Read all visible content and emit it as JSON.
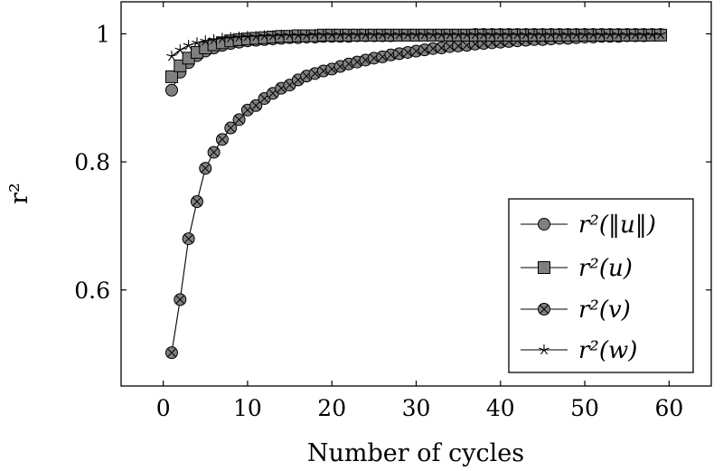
{
  "chart_data": {
    "type": "line",
    "title": "",
    "xlabel": "Number of cycles",
    "ylabel": "r²",
    "xlim": [
      -5,
      65
    ],
    "ylim": [
      0.45,
      1.05
    ],
    "xticks": [
      0,
      10,
      20,
      30,
      40,
      50,
      60
    ],
    "xtick_labels": [
      "0",
      "10",
      "20",
      "30",
      "40",
      "50",
      "60"
    ],
    "yticks": [
      0.6,
      0.8,
      1
    ],
    "ytick_labels": [
      "0.6",
      "0.8",
      "1"
    ],
    "grid": false,
    "legend_position": "bottom-right",
    "series": [
      {
        "name": "r²(‖u‖)",
        "marker": "circle",
        "color": "#808080",
        "x": [
          1,
          2,
          3,
          4,
          5,
          6,
          7,
          8,
          9,
          10,
          11,
          12,
          13,
          14,
          15,
          16,
          17,
          18,
          19,
          20,
          21,
          22,
          23,
          24,
          25,
          26,
          27,
          28,
          29,
          30,
          31,
          32,
          33,
          34,
          35,
          36,
          37,
          38,
          39,
          40,
          41,
          42,
          43,
          44,
          45,
          46,
          47,
          48,
          49,
          50,
          51,
          52,
          53,
          54,
          55,
          56,
          57,
          58,
          59
        ],
        "y": [
          0.912,
          0.94,
          0.955,
          0.966,
          0.973,
          0.978,
          0.982,
          0.985,
          0.987,
          0.989,
          0.99,
          0.991,
          0.992,
          0.993,
          0.994,
          0.994,
          0.995,
          0.995,
          0.996,
          0.996,
          0.996,
          0.996,
          0.997,
          0.997,
          0.997,
          0.997,
          0.997,
          0.998,
          0.998,
          0.998,
          0.998,
          0.998,
          0.998,
          0.998,
          0.998,
          0.998,
          0.999,
          0.999,
          0.999,
          0.999,
          0.999,
          0.999,
          0.999,
          0.999,
          0.999,
          0.999,
          0.999,
          0.999,
          0.999,
          0.999,
          0.999,
          0.999,
          0.999,
          0.999,
          0.999,
          0.999,
          0.999,
          0.999,
          0.999
        ]
      },
      {
        "name": "r²(u)",
        "marker": "square",
        "color": "#808080",
        "x": [
          1,
          2,
          3,
          4,
          5,
          6,
          7,
          8,
          9,
          10,
          11,
          12,
          13,
          14,
          15,
          16,
          17,
          18,
          19,
          20,
          21,
          22,
          23,
          24,
          25,
          26,
          27,
          28,
          29,
          30,
          31,
          32,
          33,
          34,
          35,
          36,
          37,
          38,
          39,
          40,
          41,
          42,
          43,
          44,
          45,
          46,
          47,
          48,
          49,
          50,
          51,
          52,
          53,
          54,
          55,
          56,
          57,
          58,
          59
        ],
        "y": [
          0.933,
          0.95,
          0.962,
          0.971,
          0.978,
          0.983,
          0.986,
          0.989,
          0.991,
          0.992,
          0.993,
          0.994,
          0.995,
          0.996,
          0.996,
          0.997,
          0.997,
          0.997,
          0.998,
          0.998,
          0.998,
          0.998,
          0.998,
          0.998,
          0.998,
          0.998,
          0.998,
          0.998,
          0.998,
          0.998,
          0.998,
          0.998,
          0.998,
          0.998,
          0.998,
          0.998,
          0.998,
          0.998,
          0.998,
          0.998,
          0.998,
          0.998,
          0.998,
          0.998,
          0.998,
          0.998,
          0.998,
          0.998,
          0.998,
          0.998,
          0.998,
          0.998,
          0.998,
          0.998,
          0.998,
          0.998,
          0.998,
          0.998,
          0.998
        ]
      },
      {
        "name": "r²(v)",
        "marker": "otimes",
        "color": "#808080",
        "x": [
          1,
          2,
          3,
          4,
          5,
          6,
          7,
          8,
          9,
          10,
          11,
          12,
          13,
          14,
          15,
          16,
          17,
          18,
          19,
          20,
          21,
          22,
          23,
          24,
          25,
          26,
          27,
          28,
          29,
          30,
          31,
          32,
          33,
          34,
          35,
          36,
          37,
          38,
          39,
          40,
          41,
          42,
          43,
          44,
          45,
          46,
          47,
          48,
          49,
          50,
          51,
          52,
          53,
          54,
          55,
          56,
          57,
          58,
          59
        ],
        "y": [
          0.502,
          0.585,
          0.68,
          0.738,
          0.79,
          0.815,
          0.835,
          0.853,
          0.866,
          0.881,
          0.888,
          0.899,
          0.907,
          0.915,
          0.92,
          0.928,
          0.934,
          0.938,
          0.942,
          0.945,
          0.949,
          0.953,
          0.956,
          0.959,
          0.962,
          0.964,
          0.967,
          0.969,
          0.971,
          0.973,
          0.975,
          0.977,
          0.978,
          0.98,
          0.981,
          0.982,
          0.984,
          0.985,
          0.986,
          0.987,
          0.988,
          0.989,
          0.99,
          0.991,
          0.991,
          0.992,
          0.993,
          0.993,
          0.994,
          0.995,
          0.995,
          0.996,
          0.996,
          0.996,
          0.997,
          0.997,
          0.997,
          0.998,
          0.998
        ]
      },
      {
        "name": "r²(w)",
        "marker": "star",
        "color": "#000000",
        "x": [
          1,
          2,
          3,
          4,
          5,
          6,
          7,
          8,
          9,
          10,
          11,
          12,
          13,
          14,
          15,
          16,
          17,
          18,
          19,
          20,
          21,
          22,
          23,
          24,
          25,
          26,
          27,
          28,
          29,
          30,
          31,
          32,
          33,
          34,
          35,
          36,
          37,
          38,
          39,
          40,
          41,
          42,
          43,
          44,
          45,
          46,
          47,
          48,
          49,
          50,
          51,
          52,
          53,
          54,
          55,
          56,
          57,
          58,
          59
        ],
        "y": [
          0.965,
          0.975,
          0.982,
          0.986,
          0.989,
          0.991,
          0.993,
          0.994,
          0.995,
          0.996,
          0.996,
          0.997,
          0.997,
          0.998,
          0.998,
          0.998,
          0.998,
          0.999,
          0.999,
          0.999,
          0.999,
          0.999,
          0.999,
          0.999,
          0.999,
          0.999,
          0.999,
          0.999,
          0.999,
          0.999,
          0.999,
          0.999,
          0.999,
          0.999,
          0.999,
          0.999,
          0.999,
          0.999,
          0.999,
          0.999,
          0.999,
          0.999,
          0.999,
          0.999,
          0.999,
          0.999,
          0.999,
          0.999,
          0.999,
          0.999,
          0.999,
          0.999,
          0.999,
          0.999,
          0.999,
          0.999,
          0.999,
          0.999,
          0.999
        ]
      }
    ]
  }
}
